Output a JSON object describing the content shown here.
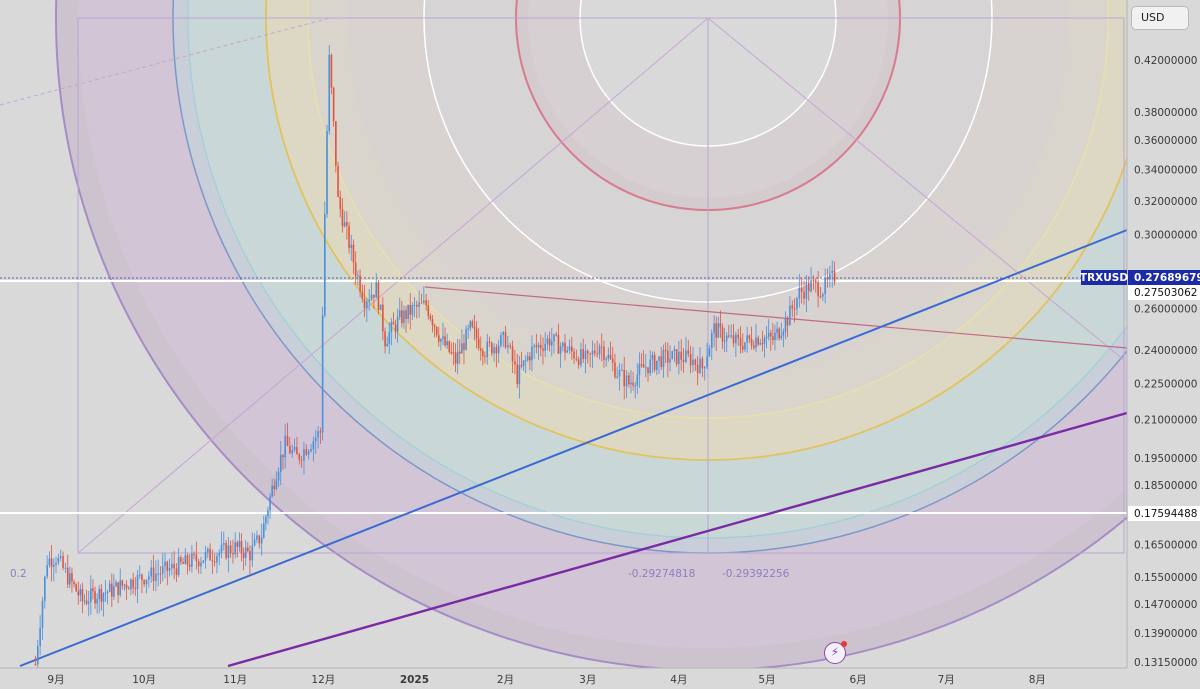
{
  "chart_data": {
    "type": "candlestick",
    "symbol": "TRXUSD",
    "currency": "USD",
    "y_scale": "log",
    "ylim": [
      0.1315,
      0.445
    ],
    "y_ticks": [
      "0.42000000",
      "0.38000000",
      "0.36000000",
      "0.34000000",
      "0.32000000",
      "0.30000000",
      "0.26000000",
      "0.24000000",
      "0.22500000",
      "0.21000000",
      "0.19500000",
      "0.18500000",
      "0.16500000",
      "0.15500000",
      "0.14700000",
      "0.13900000",
      "0.13150000"
    ],
    "x_labels": [
      "9月",
      "10月",
      "11月",
      "12月",
      "2025",
      "2月",
      "3月",
      "4月",
      "5月",
      "6月",
      "7月",
      "8月"
    ],
    "price_labels": [
      {
        "text": "TRXUSD",
        "value": "0.27689679",
        "price": 0.27689679,
        "style": "current"
      },
      {
        "text": "",
        "value": "0.27503062",
        "price": 0.27503062,
        "style": "hline"
      },
      {
        "text": "",
        "value": "0.17594488",
        "price": 0.17594488,
        "style": "hline"
      }
    ],
    "fib_labels": [
      "-0.29274818",
      "-0.29392256",
      "0.2"
    ],
    "series_points": [
      [
        "2024-08-25",
        0.131
      ],
      [
        "2024-08-29",
        0.16
      ],
      [
        "2024-09-01",
        0.161
      ],
      [
        "2024-09-05",
        0.155
      ],
      [
        "2024-09-10",
        0.148
      ],
      [
        "2024-09-15",
        0.15
      ],
      [
        "2024-09-20",
        0.151
      ],
      [
        "2024-09-25",
        0.153
      ],
      [
        "2024-10-01",
        0.155
      ],
      [
        "2024-10-05",
        0.156
      ],
      [
        "2024-10-12",
        0.158
      ],
      [
        "2024-10-18",
        0.16
      ],
      [
        "2024-10-25",
        0.162
      ],
      [
        "2024-11-01",
        0.164
      ],
      [
        "2024-11-06",
        0.162
      ],
      [
        "2024-11-10",
        0.168
      ],
      [
        "2024-11-15",
        0.19
      ],
      [
        "2024-11-18",
        0.2
      ],
      [
        "2024-11-22",
        0.195
      ],
      [
        "2024-11-26",
        0.2
      ],
      [
        "2024-11-30",
        0.205
      ],
      [
        "2024-12-03",
        0.42
      ],
      [
        "2024-12-06",
        0.32
      ],
      [
        "2024-12-09",
        0.3
      ],
      [
        "2024-12-12",
        0.28
      ],
      [
        "2024-12-15",
        0.265
      ],
      [
        "2024-12-19",
        0.27
      ],
      [
        "2024-12-22",
        0.245
      ],
      [
        "2024-12-27",
        0.255
      ],
      [
        "2025-01-01",
        0.26
      ],
      [
        "2025-01-05",
        0.262
      ],
      [
        "2025-01-10",
        0.245
      ],
      [
        "2025-01-15",
        0.235
      ],
      [
        "2025-01-20",
        0.25
      ],
      [
        "2025-01-25",
        0.24
      ],
      [
        "2025-02-01",
        0.245
      ],
      [
        "2025-02-05",
        0.228
      ],
      [
        "2025-02-10",
        0.24
      ],
      [
        "2025-02-16",
        0.245
      ],
      [
        "2025-02-22",
        0.24
      ],
      [
        "2025-03-01",
        0.235
      ],
      [
        "2025-03-05",
        0.243
      ],
      [
        "2025-03-11",
        0.23
      ],
      [
        "2025-03-15",
        0.225
      ],
      [
        "2025-03-20",
        0.232
      ],
      [
        "2025-03-26",
        0.236
      ],
      [
        "2025-04-01",
        0.237
      ],
      [
        "2025-04-05",
        0.236
      ],
      [
        "2025-04-09",
        0.232
      ],
      [
        "2025-04-13",
        0.25
      ],
      [
        "2025-04-18",
        0.245
      ],
      [
        "2025-04-22",
        0.243
      ],
      [
        "2025-04-28",
        0.246
      ],
      [
        "2025-05-03",
        0.245
      ],
      [
        "2025-05-08",
        0.255
      ],
      [
        "2025-05-12",
        0.268
      ],
      [
        "2025-05-16",
        0.272
      ],
      [
        "2025-05-20",
        0.27
      ],
      [
        "2025-05-24",
        0.2769
      ]
    ],
    "grid": false,
    "legend": "none"
  },
  "ui": {
    "currency_label": "USD",
    "bolt_icon": "lightning-icon"
  }
}
